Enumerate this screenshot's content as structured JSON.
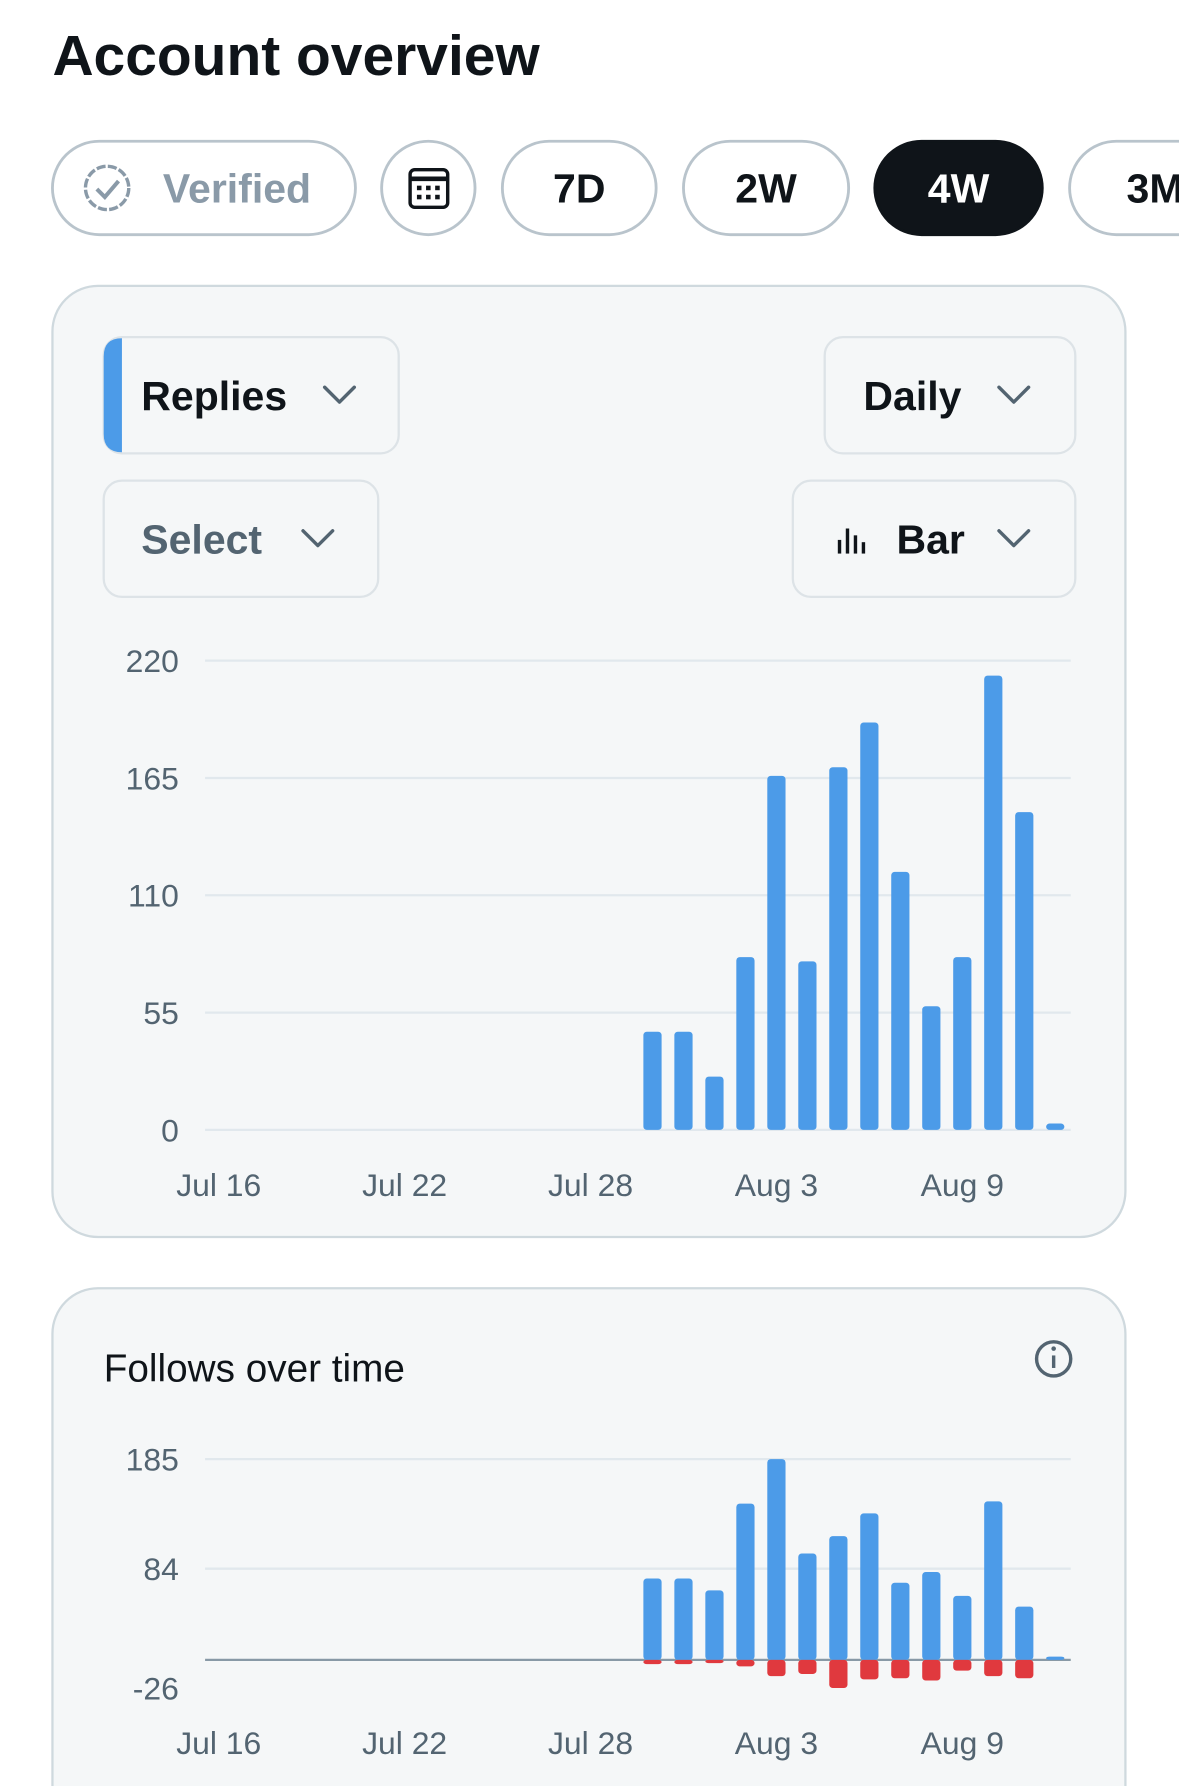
{
  "header": {
    "title": "Account overview"
  },
  "filters": [
    {
      "label": "Verified"
    },
    {
      "label": "7D"
    },
    {
      "label": "2W"
    },
    {
      "label": "4W",
      "active": true
    },
    {
      "label": "3M"
    }
  ],
  "controls": {
    "metric": "Replies",
    "interval": "Daily",
    "compare": "Select",
    "chart_type": "Bar"
  },
  "chart_data": [
    {
      "type": "bar",
      "categories": [
        "Jul 16",
        null,
        null,
        null,
        null,
        null,
        "Jul 22",
        null,
        null,
        null,
        null,
        null,
        "Jul 28",
        null,
        null,
        null,
        null,
        null,
        "Aug 3",
        null,
        null,
        null,
        null,
        null,
        "Aug 9",
        null,
        null,
        null
      ],
      "values": [
        0,
        0,
        0,
        0,
        0,
        0,
        0,
        0,
        0,
        0,
        0,
        0,
        0,
        0,
        46,
        46,
        25,
        81,
        166,
        79,
        170,
        191,
        121,
        58,
        81,
        213,
        149,
        3
      ],
      "color": "#4c9be8",
      "ylim": [
        0,
        220
      ],
      "yticks": [
        0,
        55,
        110,
        165,
        220
      ],
      "grid": true
    },
    {
      "type": "bar",
      "title": "Follows over time",
      "categories": [
        "Jul 16",
        null,
        null,
        null,
        null,
        null,
        "Jul 22",
        null,
        null,
        null,
        null,
        null,
        "Jul 28",
        null,
        null,
        null,
        null,
        null,
        "Aug 3",
        null,
        null,
        null,
        null,
        null,
        "Aug 9",
        null,
        null,
        null
      ],
      "series": [
        {
          "color": "#4c9be8",
          "values": [
            0,
            0,
            0,
            0,
            0,
            0,
            0,
            0,
            0,
            0,
            0,
            0,
            0,
            0,
            75,
            75,
            64,
            144,
            185,
            98,
            114,
            135,
            71,
            81,
            59,
            146,
            49,
            3
          ]
        },
        {
          "color": "#e0393e",
          "values": [
            0,
            0,
            0,
            0,
            0,
            0,
            0,
            0,
            0,
            0,
            0,
            0,
            0,
            0,
            -4,
            -4,
            -3,
            -6,
            -15,
            -13,
            -26,
            -18,
            -17,
            -19,
            -10,
            -15,
            -17,
            0
          ]
        }
      ],
      "ylim": [
        -26,
        185
      ],
      "yticks": [
        -26,
        84,
        185
      ],
      "grid": true
    }
  ]
}
